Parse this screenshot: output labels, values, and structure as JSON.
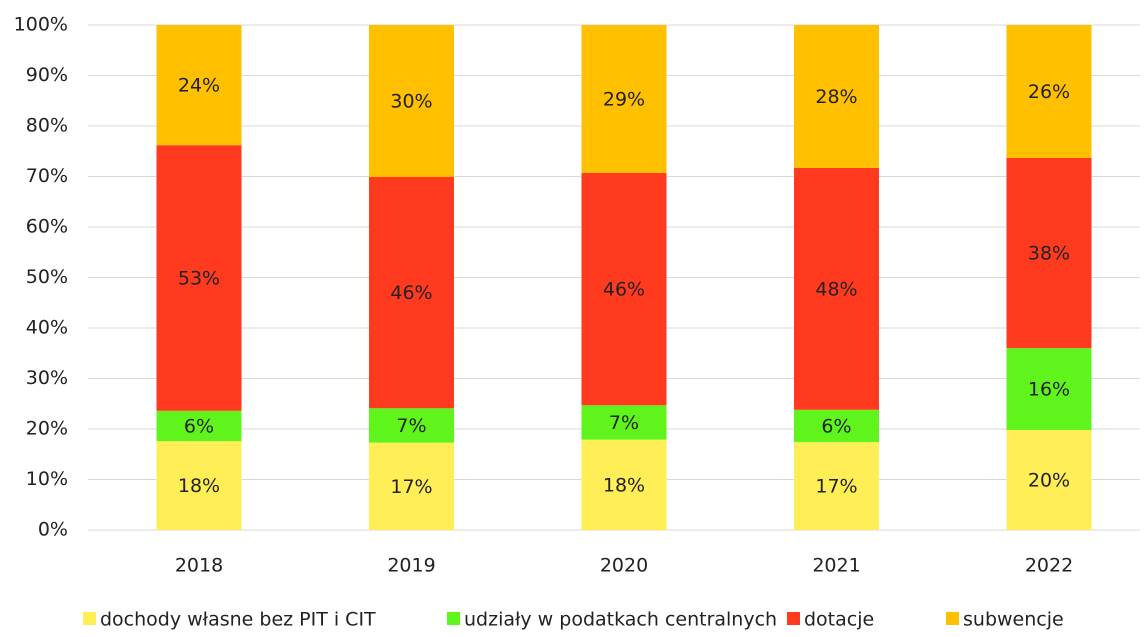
{
  "chart_data": {
    "type": "stacked_bar",
    "categories": [
      "2018",
      "2019",
      "2020",
      "2021",
      "2022"
    ],
    "series": [
      {
        "name": "dochody własne bez PIT i CIT",
        "color": "#ffee55",
        "values": [
          17.6,
          17.3,
          17.9,
          17.4,
          19.8
        ],
        "value_labels": [
          "18%",
          "17%",
          "18%",
          "17%",
          "20%"
        ]
      },
      {
        "name": "udziały w podatkach centralnych",
        "color": "#5ff51c",
        "values": [
          6.0,
          6.8,
          6.8,
          6.4,
          16.2
        ],
        "value_labels": [
          "6%",
          "7%",
          "7%",
          "6%",
          "16%"
        ]
      },
      {
        "name": "dotacje",
        "color": "#ff3a1f",
        "values": [
          52.6,
          45.8,
          46.0,
          47.9,
          37.7
        ],
        "value_labels": [
          "53%",
          "46%",
          "46%",
          "48%",
          "38%"
        ]
      },
      {
        "name": "subwencje",
        "color": "#ffc000",
        "values": [
          23.8,
          30.1,
          29.3,
          28.3,
          26.3
        ],
        "value_labels": [
          "24%",
          "30%",
          "29%",
          "28%",
          "26%"
        ]
      }
    ],
    "ylim": [
      0,
      100
    ],
    "yticks": [
      {
        "value": 0,
        "label": "0%"
      },
      {
        "value": 10,
        "label": "10%"
      },
      {
        "value": 20,
        "label": "20%"
      },
      {
        "value": 30,
        "label": "30%"
      },
      {
        "value": 40,
        "label": "40%"
      },
      {
        "value": 50,
        "label": "50%"
      },
      {
        "value": 60,
        "label": "60%"
      },
      {
        "value": 70,
        "label": "70%"
      },
      {
        "value": 80,
        "label": "80%"
      },
      {
        "value": 90,
        "label": "90%"
      },
      {
        "value": 100,
        "label": "100%"
      }
    ],
    "grid": true,
    "legend": "bottom"
  }
}
